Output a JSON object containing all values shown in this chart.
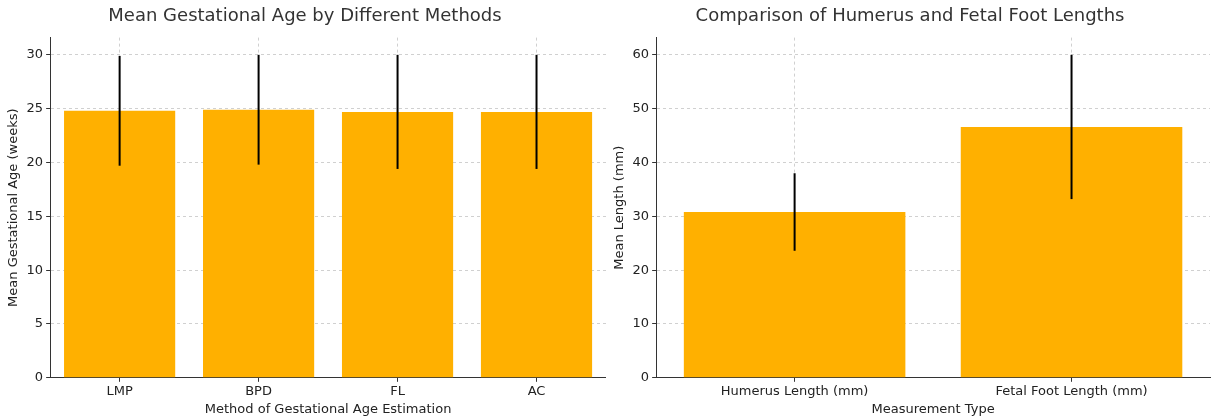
{
  "chart_data": [
    {
      "type": "bar",
      "title": "Mean Gestational Age by Different Methods",
      "xlabel": "Method of Gestational Age Estimation",
      "ylabel": "Mean Gestational Age (weeks)",
      "categories": [
        "LMP",
        "BPD",
        "FL",
        "AC"
      ],
      "values": [
        24.8,
        24.9,
        24.7,
        24.7
      ],
      "errors": [
        5.1,
        5.1,
        5.3,
        5.3
      ],
      "color": "#ffb000",
      "ylim": [
        0,
        31.6
      ],
      "yticks": [
        0,
        5,
        10,
        15,
        20,
        25,
        30
      ],
      "grid": true,
      "legend": false
    },
    {
      "type": "bar",
      "title": "Comparison of Humerus and Fetal Foot Lengths",
      "xlabel": "Measurement Type",
      "ylabel": "Mean Length (mm)",
      "categories": [
        "Humerus Length (mm)",
        "Fetal Foot Length (mm)"
      ],
      "values": [
        30.8,
        46.6
      ],
      "errors": [
        7.2,
        13.4
      ],
      "color": "#ffb000",
      "ylim": [
        0,
        63.2
      ],
      "yticks": [
        0,
        10,
        20,
        30,
        40,
        50,
        60
      ],
      "grid": true,
      "legend": false
    }
  ]
}
